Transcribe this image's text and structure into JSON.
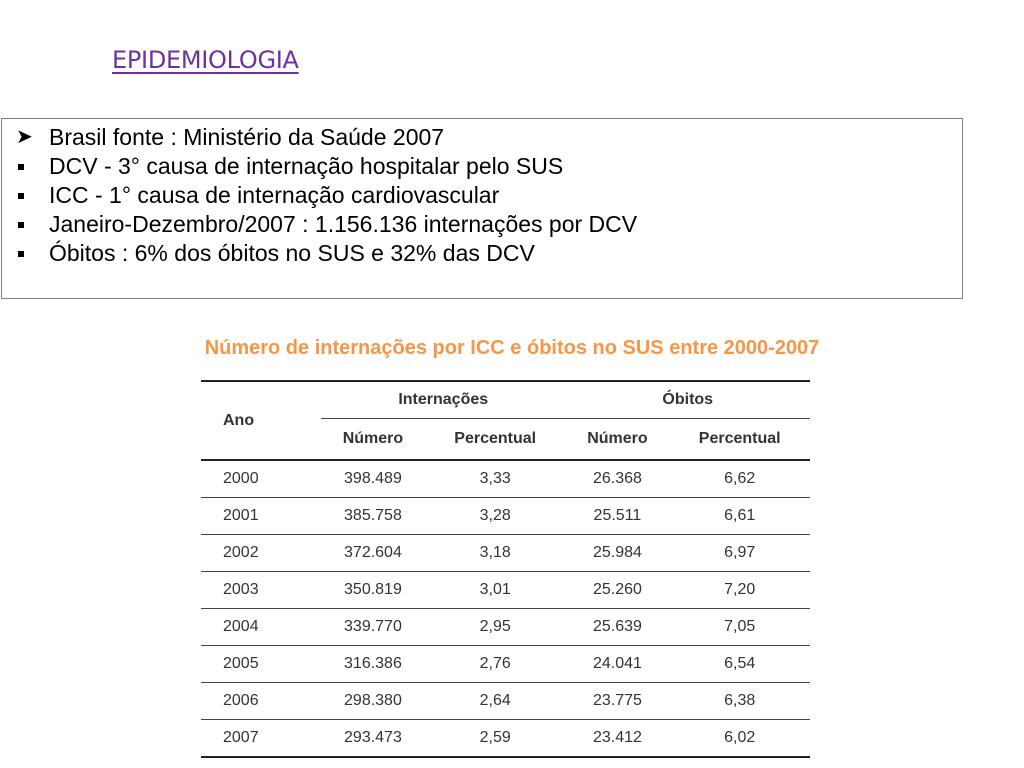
{
  "title": "EPIDEMIOLOGIA",
  "info": {
    "items": [
      {
        "bullet": "arrow",
        "text": "Brasil fonte : Ministério da Saúde 2007"
      },
      {
        "bullet": "square",
        "text": "DCV - 3° causa de internação hospitalar pelo SUS"
      },
      {
        "bullet": "square",
        "text": "ICC - 1° causa de internação cardiovascular"
      },
      {
        "bullet": "square",
        "text": "Janeiro-Dezembro/2007 : 1.156.136 internações por DCV"
      },
      {
        "bullet": "square",
        "text": "Óbitos : 6% dos óbitos no SUS e 32% das DCV"
      }
    ]
  },
  "table": {
    "caption": "Número de internações por ICC e óbitos no SUS entre 2000-2007",
    "header_ano": "Ano",
    "group_internacoes": "Internações",
    "group_obitos": "Óbitos",
    "sub_numero": "Número",
    "sub_percentual": "Percentual",
    "rows": [
      [
        "2000",
        "398.489",
        "3,33",
        "26.368",
        "6,62"
      ],
      [
        "2001",
        "385.758",
        "3,28",
        "25.511",
        "6,61"
      ],
      [
        "2002",
        "372.604",
        "3,18",
        "25.984",
        "6,97"
      ],
      [
        "2003",
        "350.819",
        "3,01",
        "25.260",
        "7,20"
      ],
      [
        "2004",
        "339.770",
        "2,95",
        "25.639",
        "7,05"
      ],
      [
        "2005",
        "316.386",
        "2,76",
        "24.041",
        "6,54"
      ],
      [
        "2006",
        "298.380",
        "2,64",
        "23.775",
        "6,38"
      ],
      [
        "2007",
        "293.473",
        "2,59",
        "23.412",
        "6,02"
      ]
    ]
  },
  "colors": {
    "title": "#7030a0",
    "caption": "#f79646",
    "table_text": "#333333"
  }
}
